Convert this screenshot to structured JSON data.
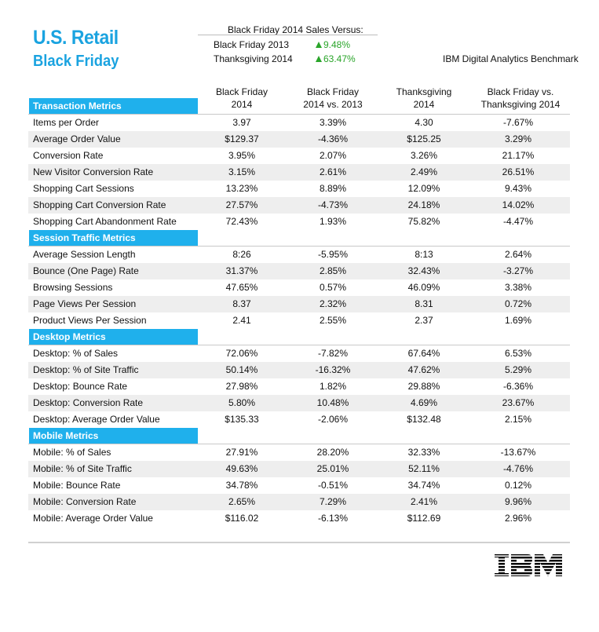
{
  "header": {
    "title_line1": "U.S. Retail",
    "title_line2": "Black Friday",
    "versus_title": "Black Friday 2014 Sales Versus:",
    "versus": [
      {
        "label": "Black Friday 2013",
        "value": "9.48%"
      },
      {
        "label": "Thanksgiving 2014",
        "value": "63.47%"
      }
    ],
    "benchmark": "IBM Digital Analytics Benchmark"
  },
  "columns": [
    {
      "line1": "Black Friday",
      "line2": "2014"
    },
    {
      "line1": "Black Friday",
      "line2": "2014 vs. 2013"
    },
    {
      "line1": "Thanksgiving",
      "line2": "2014"
    },
    {
      "line1": "Black Friday vs.",
      "line2": "Thanksgiving 2014"
    }
  ],
  "sections": [
    {
      "title": "Transaction Metrics",
      "rows": [
        [
          "Items per Order",
          "3.97",
          "3.39%",
          "4.30",
          "-7.67%"
        ],
        [
          "Average Order Value",
          "$129.37",
          "-4.36%",
          "$125.25",
          "3.29%"
        ],
        [
          "Conversion Rate",
          "3.95%",
          "2.07%",
          "3.26%",
          "21.17%"
        ],
        [
          "New Visitor Conversion Rate",
          "3.15%",
          "2.61%",
          "2.49%",
          "26.51%"
        ],
        [
          "Shopping Cart Sessions",
          "13.23%",
          "8.89%",
          "12.09%",
          "9.43%"
        ],
        [
          "Shopping Cart Conversion Rate",
          "27.57%",
          "-4.73%",
          "24.18%",
          "14.02%"
        ],
        [
          "Shopping Cart Abandonment Rate",
          "72.43%",
          "1.93%",
          "75.82%",
          "-4.47%"
        ]
      ]
    },
    {
      "title": "Session Traffic Metrics",
      "rows": [
        [
          "Average Session Length",
          "8:26",
          "-5.95%",
          "8:13",
          "2.64%"
        ],
        [
          "Bounce (One Page) Rate",
          "31.37%",
          "2.85%",
          "32.43%",
          "-3.27%"
        ],
        [
          "Browsing Sessions",
          "47.65%",
          "0.57%",
          "46.09%",
          "3.38%"
        ],
        [
          "Page Views Per Session",
          "8.37",
          "2.32%",
          "8.31",
          "0.72%"
        ],
        [
          "Product Views Per Session",
          "2.41",
          "2.55%",
          "2.37",
          "1.69%"
        ]
      ]
    },
    {
      "title": "Desktop Metrics",
      "rows": [
        [
          "Desktop: % of Sales",
          "72.06%",
          "-7.82%",
          "67.64%",
          "6.53%"
        ],
        [
          "Desktop: % of Site Traffic",
          "50.14%",
          "-16.32%",
          "47.62%",
          "5.29%"
        ],
        [
          "Desktop: Bounce Rate",
          "27.98%",
          "1.82%",
          "29.88%",
          "-6.36%"
        ],
        [
          "Desktop: Conversion Rate",
          "5.80%",
          "10.48%",
          "4.69%",
          "23.67%"
        ],
        [
          "Desktop: Average Order Value",
          "$135.33",
          "-2.06%",
          "$132.48",
          "2.15%"
        ]
      ]
    },
    {
      "title": "Mobile Metrics",
      "rows": [
        [
          "Mobile: % of Sales",
          "27.91%",
          "28.20%",
          "32.33%",
          "-13.67%"
        ],
        [
          "Mobile: % of Site Traffic",
          "49.63%",
          "25.01%",
          "52.11%",
          "-4.76%"
        ],
        [
          "Mobile: Bounce Rate",
          "34.78%",
          "-0.51%",
          "34.74%",
          "0.12%"
        ],
        [
          "Mobile: Conversion Rate",
          "2.65%",
          "7.29%",
          "2.41%",
          "9.96%"
        ],
        [
          "Mobile: Average Order Value",
          "$116.02",
          "-6.13%",
          "$112.69",
          "2.96%"
        ]
      ]
    }
  ],
  "logo": {
    "text": "IBM",
    "color": "#000000"
  },
  "colors": {
    "accent": "#1aa3e0",
    "section_bar": "#1fb0ec",
    "positive": "#2aa52a",
    "row_shade": "#eeeeee"
  }
}
